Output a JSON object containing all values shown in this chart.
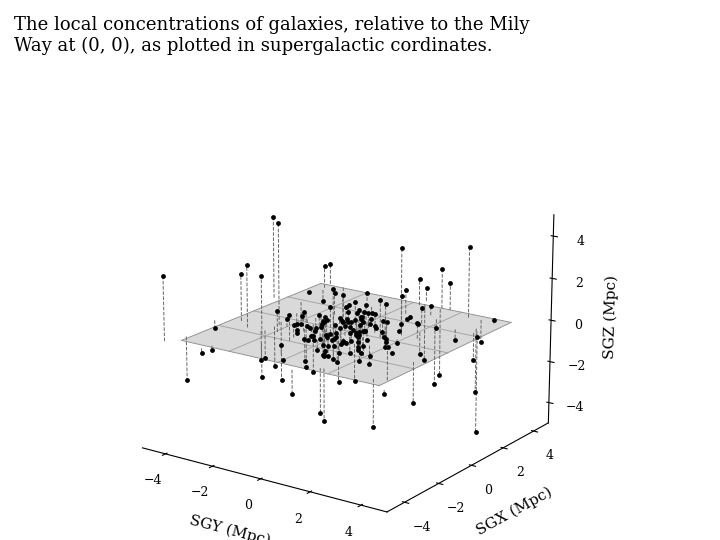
{
  "title": "The local concentrations of galaxies, relative to the Mily\nWay at (0, 0), as plotted in supergalactic cordinates.",
  "xlabel": "SGY (Mpc)",
  "ylabel": "SGX (Mpc)",
  "zlabel": "SGZ (Mpc)",
  "plane_color": "#c0c0c0",
  "plane_alpha": 0.6,
  "plane_edge_color": "#808080",
  "dot_color": "black",
  "dot_size": 12,
  "line_color": "#666666",
  "line_style": "--",
  "line_width": 0.7,
  "title_fontsize": 13,
  "label_fontsize": 11,
  "tick_fontsize": 9,
  "background_color": "#ffffff",
  "seed": 42,
  "n_galaxies": 180,
  "elev": 18,
  "azim": -55
}
